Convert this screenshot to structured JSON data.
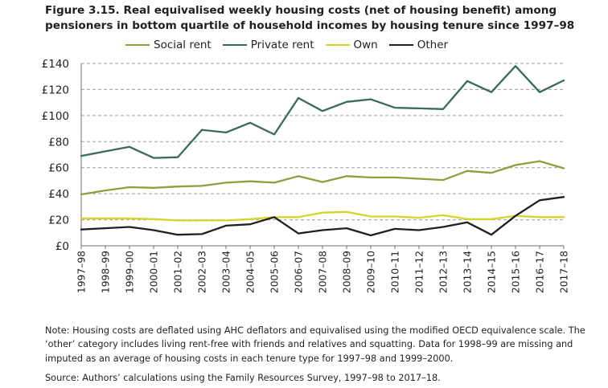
{
  "figure": {
    "title_line1": "Figure 3.15. Real equivalised weekly housing costs (net of housing benefit) among",
    "title_line2": "pensioners in bottom quartile of household incomes by housing tenure since 1997–98",
    "note": "Note: Housing costs are deflated using AHC deflators and equivalised using the modified OECD equivalence scale. The ‘other’ category includes living rent-free with friends and relatives and squatting. Data for 1998–99 are missing and imputed as an average of housing costs in each tenure type for 1997–98 and 1999–2000.",
    "source": "Source: Authors’ calculations using the Family Resources Survey, 1997–98 to 2017–18."
  },
  "chart_data": {
    "type": "line",
    "title": "Figure 3.15. Real equivalised weekly housing costs (net of housing benefit) among pensioners in bottom quartile of household incomes by housing tenure since 1997–98",
    "xlabel": "",
    "ylabel": "",
    "categories": [
      "1997–98",
      "1998–99",
      "1999–00",
      "2000–01",
      "2001–02",
      "2002–03",
      "2003–04",
      "2004–05",
      "2005–06",
      "2006–07",
      "2007–08",
      "2008–09",
      "2009–10",
      "2010–11",
      "2011–12",
      "2012–13",
      "2013–14",
      "2014–15",
      "2015–16",
      "2016–17",
      "2017–18"
    ],
    "ylim": [
      0,
      140
    ],
    "yticks": [
      0,
      20,
      40,
      60,
      80,
      100,
      120,
      140
    ],
    "ytick_labels": [
      "£0",
      "£20",
      "£40",
      "£60",
      "£80",
      "£100",
      "£120",
      "£140"
    ],
    "grid": "horizontal dashed",
    "legend_position": "top",
    "series": [
      {
        "name": "Social rent",
        "color": "#8ca040",
        "values": [
          39.5,
          42.5,
          45,
          44.5,
          45.5,
          46,
          48.5,
          49.5,
          48.5,
          53.5,
          49,
          53.5,
          52.5,
          52.5,
          51.5,
          50.5,
          57.5,
          56,
          62,
          65,
          59.5
        ]
      },
      {
        "name": "Private rent",
        "color": "#3a6b58",
        "values": [
          69,
          72.5,
          76,
          67.5,
          68,
          89,
          87,
          94.5,
          85.5,
          113.5,
          103.5,
          110.5,
          112.5,
          106,
          105.5,
          105,
          126.5,
          118,
          138,
          118,
          127
        ]
      },
      {
        "name": "Own",
        "color": "#d4d62a",
        "values": [
          21,
          21,
          21,
          20.5,
          19.5,
          19.5,
          19.5,
          20.5,
          22,
          22,
          25.5,
          26,
          22.5,
          22.5,
          21.5,
          23.5,
          20.5,
          20.5,
          23,
          22,
          22
        ]
      },
      {
        "name": "Other",
        "color": "#231f20",
        "values": [
          12.5,
          13.5,
          14.5,
          12,
          8.5,
          9,
          15.5,
          16.5,
          22,
          9.5,
          12,
          13.5,
          8,
          13,
          12,
          14.5,
          18,
          8.5,
          23,
          35,
          37.5
        ]
      }
    ]
  }
}
